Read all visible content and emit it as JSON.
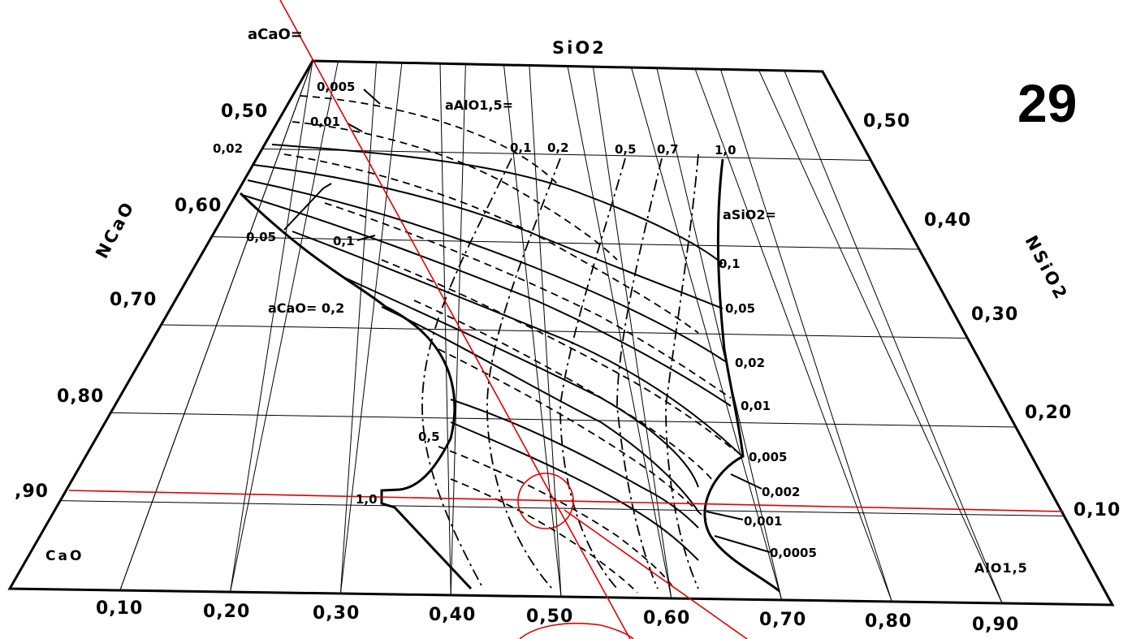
{
  "figure_number": "29",
  "corners": {
    "top": "SiO2",
    "bottom_left": "CaO",
    "bottom_right": "AlO1,5"
  },
  "left_axis": {
    "title": "NCaO",
    "ticks": [
      "0,50",
      "0,60",
      "0,70",
      "0,80",
      ",90"
    ]
  },
  "right_axis": {
    "title": "NSiO2",
    "ticks": [
      "0,50",
      "0,40",
      "0,30",
      "0,20",
      "0,10"
    ]
  },
  "bottom_axis": {
    "ticks": [
      "0,10",
      "0,20",
      "0,30",
      "0,40",
      "0,50",
      "0,60",
      "0,70",
      "0,80",
      "0,90"
    ]
  },
  "activity_labels": {
    "a_cao_header": "aCaO=",
    "a_cao_values": [
      "0,005",
      "0,01",
      "0,02",
      "0,05",
      "0,1"
    ],
    "a_cao_inline": "aCaO= 0,2",
    "a_cao_05": "0,5",
    "a_cao_10": "1,0",
    "a_alo_header": "aAlO1,5=",
    "a_alo_values": [
      "0,1",
      "0,2",
      "0,5",
      "0,7",
      "1,0"
    ],
    "a_sio2_header": "aSiO2=",
    "a_sio2_values": [
      "0,1",
      "0,05",
      "0,02",
      "0,01",
      "0,005",
      "0,002",
      "0,001",
      "0,0005"
    ]
  }
}
